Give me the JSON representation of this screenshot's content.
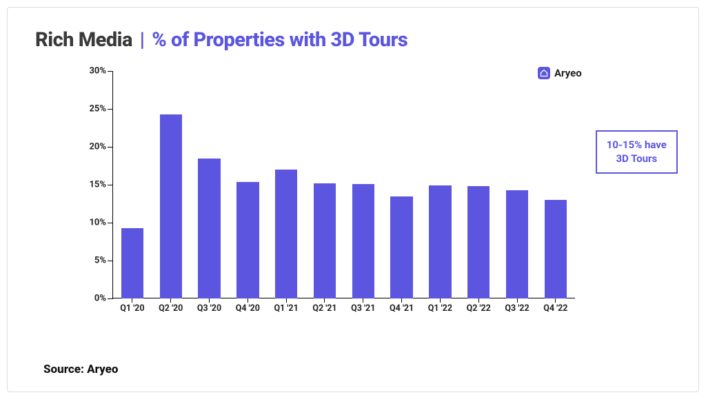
{
  "title": {
    "left": "Rich Media",
    "pipe": "|",
    "right": "% of Properties with 3D Tours",
    "left_color": "#393939",
    "right_color": "#5b55e0",
    "fontsize": 29
  },
  "chart": {
    "type": "bar",
    "categories": [
      "Q1 '20",
      "Q2 '20",
      "Q3 '20",
      "Q4 '20",
      "Q1 '21",
      "Q2 '21",
      "Q3 '21",
      "Q4 '21",
      "Q1 '22",
      "Q2 '22",
      "Q3 '22",
      "Q4 '22"
    ],
    "values": [
      9.3,
      24.3,
      18.5,
      15.4,
      17.0,
      15.2,
      15.1,
      13.5,
      14.9,
      14.8,
      14.3,
      13.0
    ],
    "bar_color": "#5b55e0",
    "ylim": [
      0,
      30
    ],
    "ytick_step": 5,
    "ytick_suffix": "%",
    "axis_color": "#000000",
    "label_fontsize": 13,
    "xlabel_fontsize": 12.5,
    "bar_width": 0.58,
    "background_color": "#ffffff"
  },
  "legend": {
    "label": "Aryeo",
    "icon_bg": "#5b55e0",
    "icon_glyph": "⌂",
    "text_color": "#222222"
  },
  "callout": {
    "line1": "10-15% have",
    "line2": "3D Tours",
    "border_color": "#5b55e0",
    "text_color": "#5b55e0"
  },
  "source": {
    "text": "Source: Aryeo"
  }
}
